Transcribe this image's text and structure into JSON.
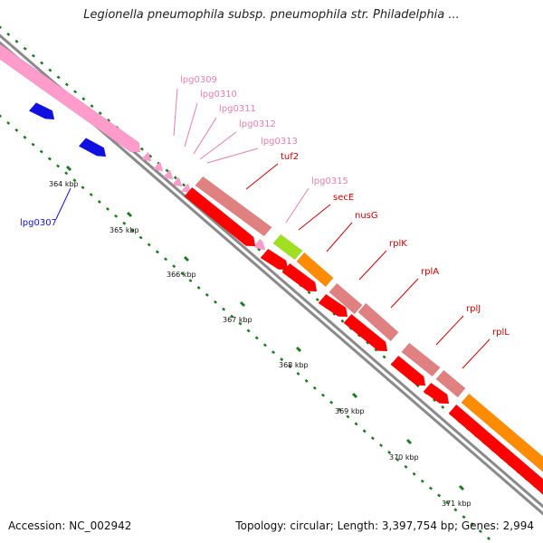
{
  "title": "Legionella pneumophila subsp. pneumophila str. Philadelphia ...",
  "footer": {
    "accession": "Accession: NC_002942",
    "summary": "Topology: circular; Length: 3,397,754 bp; Genes: 2,994"
  },
  "colors": {
    "backbone": "#8a8a8a",
    "tick": "#1e7a1e",
    "pink_gene": "#ff9ccc",
    "blue_gene": "#1010e0",
    "red_gene": "#ff0000",
    "salmon_gene": "#e08080",
    "green_gene": "#a0e020",
    "orange_gene": "#ff8c00",
    "label_pink": "#e080b0",
    "label_red": "#cc0000",
    "label_blue": "#0000cc"
  },
  "ticks": [
    {
      "label": "364 kbp"
    },
    {
      "label": "365 kbp"
    },
    {
      "label": "366 kbp"
    },
    {
      "label": "367 kbp"
    },
    {
      "label": "368 kbp"
    },
    {
      "label": "369 kbp"
    },
    {
      "label": "370 kbp"
    },
    {
      "label": "371 kbp"
    }
  ],
  "genes": [
    {
      "name": "lpg0307",
      "color": "blue_gene"
    },
    {
      "name": "lpg0309",
      "color": "label_pink"
    },
    {
      "name": "lpg0310",
      "color": "label_pink"
    },
    {
      "name": "lpg0311",
      "color": "label_pink"
    },
    {
      "name": "lpg0312",
      "color": "label_pink"
    },
    {
      "name": "lpg0313",
      "color": "label_pink"
    },
    {
      "name": "tuf2",
      "color": "label_red"
    },
    {
      "name": "lpg0315",
      "color": "label_pink"
    },
    {
      "name": "secE",
      "color": "label_red"
    },
    {
      "name": "nusG",
      "color": "label_red"
    },
    {
      "name": "rplK",
      "color": "label_red"
    },
    {
      "name": "rplA",
      "color": "label_red"
    },
    {
      "name": "rplJ",
      "color": "label_red"
    },
    {
      "name": "rplL",
      "color": "label_red"
    }
  ]
}
